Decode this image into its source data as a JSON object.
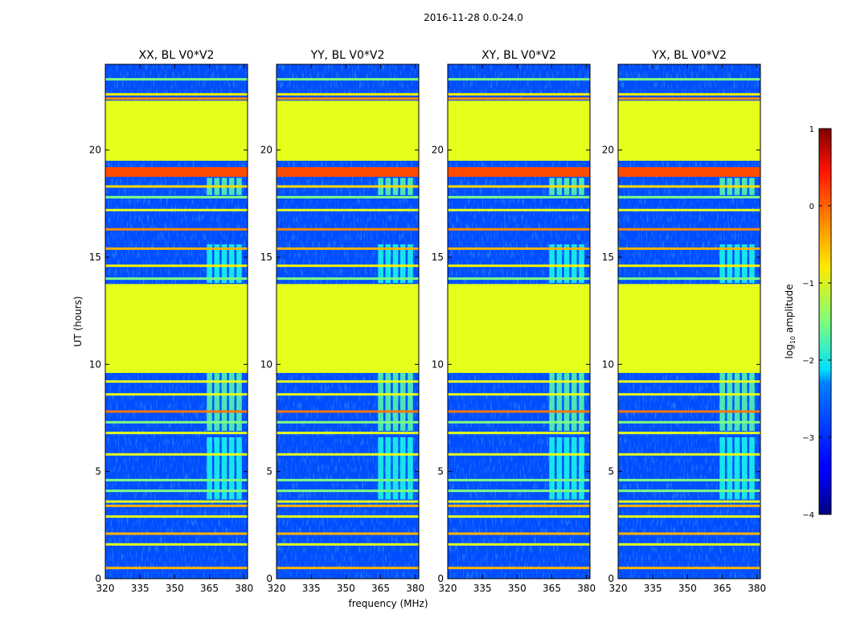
{
  "chart_data": {
    "type": "heatmap",
    "suptitle": "2016-11-28 0.0-24.0",
    "xlabel": "frequency (MHz)",
    "ylabel": "UT (hours)",
    "xlim": [
      320,
      381.5
    ],
    "ylim": [
      0,
      24
    ],
    "xticks": [
      320,
      335,
      350,
      365,
      380
    ],
    "yticks": [
      0,
      5,
      10,
      15,
      20
    ],
    "panels": [
      {
        "title": "XX, BL V0*V2",
        "pol": "XX"
      },
      {
        "title": "YY, BL V0*V2",
        "pol": "YY"
      },
      {
        "title": "XY, BL V0*V2",
        "pol": "XY"
      },
      {
        "title": "YX, BL V0*V2",
        "pol": "YX"
      }
    ],
    "background_log_amplitude": -3.0,
    "rfi_band_mhz": [
      363.5,
      379.5
    ],
    "rfi_band_log_amplitude": -2.0,
    "flagged_blocks": [
      {
        "t_start": 9.6,
        "t_end": 13.75,
        "log_amplitude": -1.0
      },
      {
        "t_start": 19.5,
        "t_end": 22.3,
        "log_amplitude": -1.0
      }
    ],
    "bright_bands": [
      {
        "t_start": 18.75,
        "t_end": 19.2,
        "log_amplitude": 0.0
      }
    ],
    "time_lines": [
      {
        "t": 0.5,
        "log_amplitude": -0.5
      },
      {
        "t": 1.6,
        "log_amplitude": -1.0
      },
      {
        "t": 2.1,
        "log_amplitude": -0.5
      },
      {
        "t": 2.9,
        "log_amplitude": -1.0
      },
      {
        "t": 3.4,
        "log_amplitude": -0.5
      },
      {
        "t": 3.6,
        "log_amplitude": -1.0
      },
      {
        "t": 4.1,
        "log_amplitude": -1.5
      },
      {
        "t": 4.6,
        "log_amplitude": -1.5
      },
      {
        "t": 5.8,
        "log_amplitude": -1.0
      },
      {
        "t": 6.8,
        "log_amplitude": -1.0
      },
      {
        "t": 7.3,
        "log_amplitude": -1.5
      },
      {
        "t": 7.8,
        "log_amplitude": -0.2
      },
      {
        "t": 8.6,
        "log_amplitude": -1.0
      },
      {
        "t": 9.2,
        "log_amplitude": -1.0
      },
      {
        "t": 14.0,
        "log_amplitude": -1.5
      },
      {
        "t": 14.6,
        "log_amplitude": -0.8
      },
      {
        "t": 15.4,
        "log_amplitude": -0.5
      },
      {
        "t": 16.3,
        "log_amplitude": -0.3
      },
      {
        "t": 17.2,
        "log_amplitude": -1.0
      },
      {
        "t": 17.8,
        "log_amplitude": -1.5
      },
      {
        "t": 18.3,
        "log_amplitude": -0.7
      },
      {
        "t": 22.4,
        "log_amplitude": -0.3
      },
      {
        "t": 22.6,
        "log_amplitude": -0.8
      },
      {
        "t": 23.3,
        "log_amplitude": -1.5
      }
    ],
    "colorbar": {
      "label_prefix": "log",
      "label_subscript": "10",
      "label_suffix": " amplitude",
      "vmin": -4,
      "vmax": 1,
      "ticks": [
        -4,
        -3,
        -2,
        -1,
        0,
        1
      ],
      "tick_labels": [
        "−4",
        "−3",
        "−2",
        "−1",
        "0",
        "1"
      ]
    }
  }
}
